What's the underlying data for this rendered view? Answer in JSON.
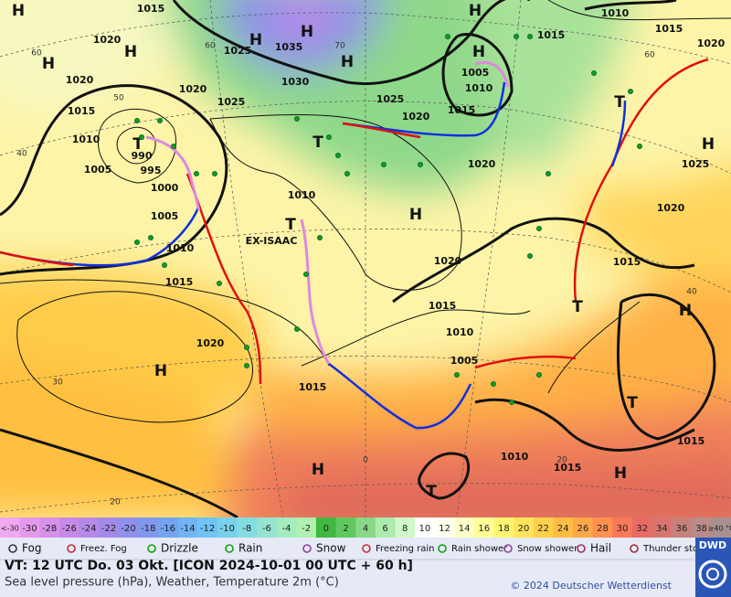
{
  "map": {
    "labels": [
      "H",
      "1015",
      "H",
      "1020",
      "H",
      "H",
      "1020",
      "H",
      "1025",
      "1035",
      "H",
      "H",
      "1030",
      "1020",
      "1025",
      "1015",
      "1010",
      "T",
      "990",
      "995",
      "1005",
      "1000",
      "1005",
      "1010",
      "1015",
      "1020",
      "H",
      "1010",
      "1015",
      "1015",
      "1020",
      "H",
      "1005",
      "1010",
      "1025",
      "1020",
      "1015",
      "T",
      "1020",
      "T",
      "H",
      "1025",
      "1010",
      "T",
      "EX-ISAAC",
      "H",
      "1020",
      "1020",
      "1015",
      "1015",
      "T",
      "H",
      "1010",
      "1005",
      "1015",
      "T",
      "1015",
      "1010",
      "1015",
      "H",
      "H",
      "T"
    ],
    "graticule_labels": [
      "60",
      "50",
      "40",
      "30",
      "20",
      "60",
      "70",
      "60",
      "40",
      "20",
      "0"
    ]
  },
  "temperature_scale": {
    "labels": [
      "<-30",
      "-30",
      "-28",
      "-26",
      "-24",
      "-22",
      "-20",
      "-18",
      "-16",
      "-14",
      "-12",
      "-10",
      "-8",
      "-6",
      "-4",
      "-2",
      "0",
      "2",
      "4",
      "6",
      "8",
      "10",
      "12",
      "14",
      "16",
      "18",
      "20",
      "22",
      "24",
      "26",
      "28",
      "30",
      "32",
      "34",
      "36",
      "38",
      "≥40 °C"
    ],
    "colors": [
      "#f0a8f0",
      "#e49aec",
      "#d890ea",
      "#c88ae8",
      "#b888e8",
      "#a48ae8",
      "#9090ec",
      "#8098ec",
      "#74a4f0",
      "#70b4f4",
      "#70c4f4",
      "#78d0ec",
      "#84dce0",
      "#94e4d0",
      "#a4ecc0",
      "#b0f0b0",
      "#40b840",
      "#60c860",
      "#88d888",
      "#acecac",
      "#d0f8c8",
      "#ffffff",
      "#fffff0",
      "#ffffc8",
      "#ffff98",
      "#fff470",
      "#ffe45c",
      "#ffd048",
      "#ffbc44",
      "#ffa848",
      "#ff9050",
      "#f87858",
      "#e86c64",
      "#d87470",
      "#c8807c",
      "#b88c88",
      "#a89090"
    ]
  },
  "weather_legend": [
    "Fog",
    "Freez. Fog",
    "Drizzle",
    "Rain",
    "Snow",
    "Freezing rain",
    "Rain shower",
    "Snow shower",
    "Hail",
    "Thunder storm"
  ],
  "footer": {
    "valid_time": "VT: 12 UTC Do.  03 Okt. [ICON 2024-10-01  00 UTC + 60 h]",
    "description": "Sea level pressure (hPa), Weather, Temperature 2m (°C)",
    "copyright": "© 2024 Deutscher Wetterdienst",
    "logo": "DWD"
  }
}
